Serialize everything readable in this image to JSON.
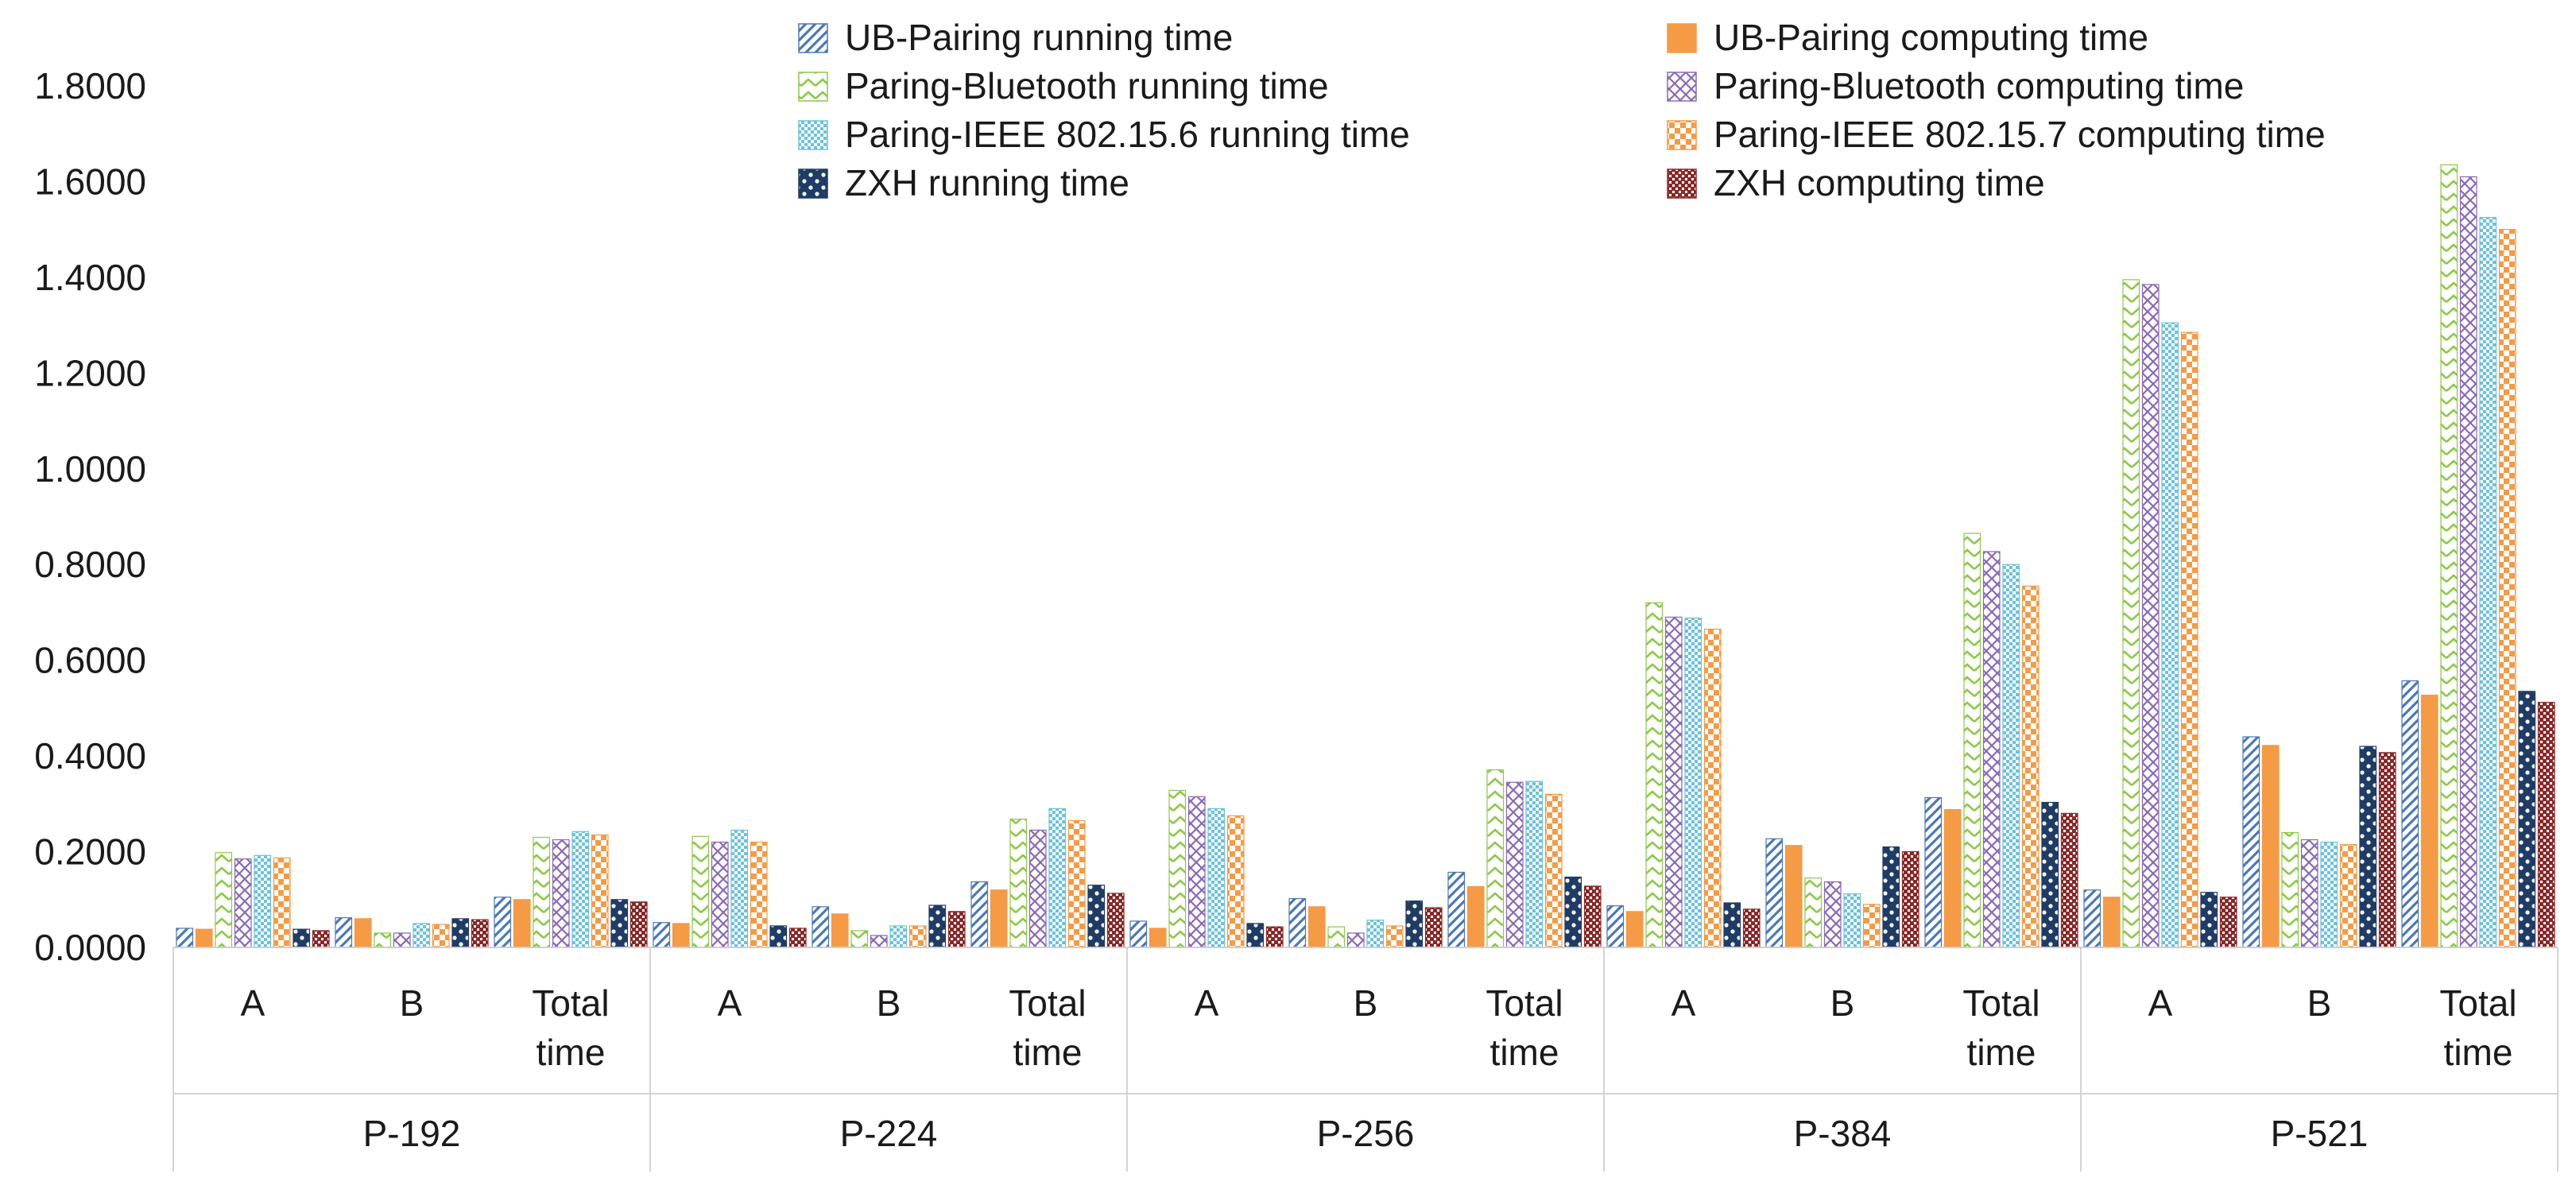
{
  "chart_data": {
    "type": "bar",
    "title": "",
    "xlabel": "",
    "ylabel": "",
    "ylim": [
      0,
      1.8
    ],
    "yticks": [
      0,
      0.2,
      0.4,
      0.6,
      0.8,
      1.0,
      1.2,
      1.4,
      1.6,
      1.8
    ],
    "ytick_labels": [
      "0.0000",
      "0.2000",
      "0.4000",
      "0.6000",
      "0.8000",
      "1.0000",
      "1.2000",
      "1.4000",
      "1.6000",
      "1.8000"
    ],
    "grid": false,
    "legend_position": "top",
    "groups": [
      "P-192",
      "P-224",
      "P-256",
      "P-384",
      "P-521"
    ],
    "subcategories": [
      [
        "A"
      ],
      [
        "B"
      ],
      [
        "Total",
        "time"
      ]
    ],
    "series": [
      {
        "name": "UB-Pairing running time",
        "color": "#4a78b8",
        "pattern": "diag",
        "values": [
          0.04,
          0.062,
          0.105,
          0.052,
          0.085,
          0.137,
          0.055,
          0.102,
          0.157,
          0.087,
          0.227,
          0.313,
          0.12,
          0.44,
          0.557
        ]
      },
      {
        "name": "UB-Pairing computing time",
        "color": "#f59a45",
        "pattern": "solid",
        "values": [
          0.038,
          0.06,
          0.1,
          0.05,
          0.07,
          0.12,
          0.04,
          0.085,
          0.127,
          0.075,
          0.213,
          0.288,
          0.105,
          0.422,
          0.527
        ]
      },
      {
        "name": "Paring-Bluetooth running time",
        "color": "#8cc94a",
        "pattern": "zigzag",
        "values": [
          0.198,
          0.03,
          0.23,
          0.232,
          0.035,
          0.268,
          0.328,
          0.043,
          0.371,
          0.72,
          0.145,
          0.865,
          1.395,
          0.24,
          1.635
        ]
      },
      {
        "name": "Paring-Bluetooth computing time",
        "color": "#8b68b5",
        "pattern": "crosshatch",
        "values": [
          0.185,
          0.03,
          0.225,
          0.22,
          0.025,
          0.245,
          0.315,
          0.03,
          0.345,
          0.69,
          0.137,
          0.827,
          1.385,
          0.225,
          1.61
        ]
      },
      {
        "name": "Paring-IEEE 802.15.6 running time",
        "color": "#6bc2de",
        "pattern": "dots",
        "values": [
          0.192,
          0.05,
          0.242,
          0.245,
          0.045,
          0.29,
          0.29,
          0.057,
          0.347,
          0.688,
          0.112,
          0.8,
          1.305,
          0.22,
          1.525
        ]
      },
      {
        "name": "Paring-IEEE 802.15.7 computing time",
        "color": "#f59a45",
        "pattern": "checker",
        "values": [
          0.187,
          0.048,
          0.235,
          0.22,
          0.045,
          0.265,
          0.275,
          0.045,
          0.32,
          0.665,
          0.09,
          0.755,
          1.285,
          0.215,
          1.5
        ]
      },
      {
        "name": "ZXH running time",
        "color": "#1f3c66",
        "pattern": "bigchecker",
        "values": [
          0.038,
          0.06,
          0.1,
          0.045,
          0.088,
          0.13,
          0.05,
          0.097,
          0.147,
          0.093,
          0.21,
          0.303,
          0.115,
          0.42,
          0.535
        ]
      },
      {
        "name": "ZXH computing time",
        "color": "#8a2828",
        "pattern": "finecheck",
        "values": [
          0.035,
          0.058,
          0.095,
          0.04,
          0.075,
          0.113,
          0.043,
          0.083,
          0.128,
          0.08,
          0.2,
          0.28,
          0.105,
          0.407,
          0.512
        ]
      }
    ]
  }
}
